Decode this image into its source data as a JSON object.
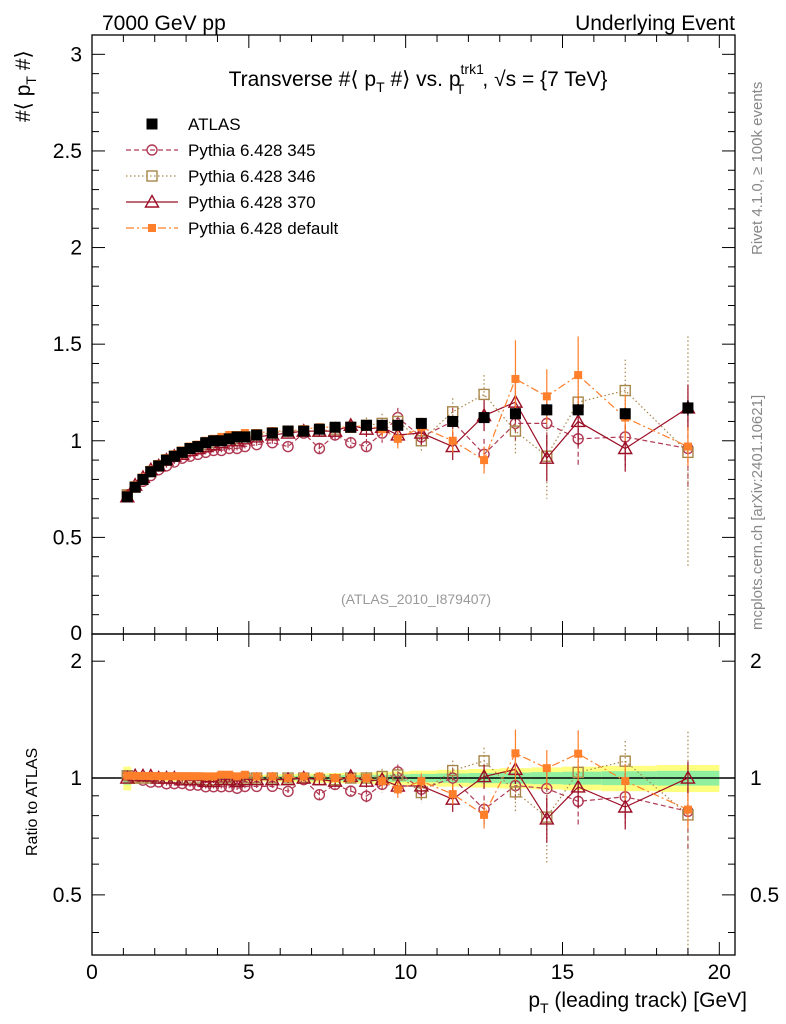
{
  "header": {
    "left": "7000 GeV pp",
    "right": "Underlying Event"
  },
  "side_labels": {
    "rivet": "Rivet 4.1.0, ≥ 100k events",
    "mcplots": "mcplots.cern.ch [arXiv:2401.10621]"
  },
  "colors": {
    "atlas": "#000000",
    "p345": "#b03a54",
    "p346": "#a8864a",
    "p370": "#9b0e24",
    "pdefault": "#ff7f2a",
    "band_inner": "#90f0a0",
    "band_outer": "#ffff80"
  },
  "chart_data": {
    "type": "scatter",
    "title": "Transverse #⟨ p_T #⟩ vs. p_T^trk1, √s = {7 TeV}",
    "title_parts": {
      "prefix": "Transverse #⟨ p",
      "sub1": "T",
      "mid": " #⟩ vs. p",
      "sup": "trk1",
      "sub2": "T",
      "suffix": ", √s = {7 TeV}"
    },
    "watermark": "(ATLAS_2010_I879407)",
    "xlabel": "p_T (leading track) [GeV]",
    "xlabel_parts": {
      "p": "p",
      "sub": "T",
      "rest": " (leading track) [GeV]"
    },
    "ylabel": "#⟨ p_T #⟩",
    "ylabel_parts": {
      "a": "#⟨ p",
      "sub": "T",
      "b": " #⟩"
    },
    "ratio_ylabel": "Ratio to ATLAS",
    "xlim": [
      0,
      20.5
    ],
    "ylim_main": [
      0,
      3.1
    ],
    "ylim_ratio": [
      0.35,
      2.35
    ],
    "x_ticks": [
      0,
      5,
      10,
      15,
      20
    ],
    "x_tick_labels": [
      "0",
      "5",
      "10",
      "15",
      "20"
    ],
    "y_ticks_main": [
      0.5,
      1,
      1.5,
      2,
      2.5,
      3
    ],
    "y_tick_labels_main": [
      "0.5",
      "1",
      "1.5",
      "2",
      "2.5",
      "3"
    ],
    "y_zero_label": "0",
    "y_ticks_ratio": [
      0.5,
      1,
      2
    ],
    "y_tick_labels_ratio": [
      "0.5",
      "1",
      "2"
    ],
    "x": [
      1.125,
      1.375,
      1.625,
      1.875,
      2.125,
      2.375,
      2.625,
      2.875,
      3.125,
      3.375,
      3.625,
      3.875,
      4.125,
      4.375,
      4.625,
      4.875,
      5.25,
      5.75,
      6.25,
      6.75,
      7.25,
      7.75,
      8.25,
      8.75,
      9.25,
      9.75,
      10.5,
      11.5,
      12.5,
      13.5,
      14.5,
      15.5,
      17.0,
      19.0
    ],
    "band_halfwidth": [
      0.07,
      0.035,
      0.03,
      0.025,
      0.022,
      0.02,
      0.02,
      0.02,
      0.02,
      0.02,
      0.02,
      0.02,
      0.02,
      0.02,
      0.02,
      0.02,
      0.02,
      0.022,
      0.024,
      0.026,
      0.028,
      0.03,
      0.032,
      0.034,
      0.036,
      0.04,
      0.045,
      0.05,
      0.055,
      0.06,
      0.065,
      0.07,
      0.075,
      0.08
    ],
    "series": [
      {
        "name": "ATLAS",
        "key": "atlas",
        "marker": "square-filled",
        "style": "none",
        "values": [
          0.71,
          0.76,
          0.8,
          0.84,
          0.87,
          0.9,
          0.92,
          0.94,
          0.96,
          0.97,
          0.99,
          1.0,
          1.0,
          1.01,
          1.02,
          1.02,
          1.03,
          1.04,
          1.05,
          1.05,
          1.06,
          1.07,
          1.07,
          1.08,
          1.08,
          1.08,
          1.09,
          1.1,
          1.12,
          1.14,
          1.16,
          1.16,
          1.14,
          1.17
        ],
        "errors": [
          0.01,
          0.01,
          0.01,
          0.01,
          0.01,
          0.01,
          0.01,
          0.01,
          0.01,
          0.01,
          0.01,
          0.01,
          0.01,
          0.01,
          0.01,
          0.01,
          0.01,
          0.01,
          0.01,
          0.01,
          0.01,
          0.01,
          0.01,
          0.01,
          0.01,
          0.02,
          0.02,
          0.02,
          0.02,
          0.03,
          0.03,
          0.03,
          0.03,
          0.04
        ]
      },
      {
        "name": "Pythia 6.428 345",
        "key": "p345",
        "marker": "circle-open",
        "style": "dashed",
        "values": [
          0.72,
          0.76,
          0.79,
          0.82,
          0.85,
          0.87,
          0.89,
          0.91,
          0.92,
          0.93,
          0.94,
          0.95,
          0.95,
          0.96,
          0.96,
          0.97,
          0.98,
          0.99,
          0.97,
          1.04,
          0.96,
          1.03,
          0.99,
          0.97,
          1.04,
          1.12,
          1.02,
          1.1,
          0.93,
          1.09,
          1.09,
          1.01,
          1.02,
          0.96
        ],
        "errors": [
          0.01,
          0.01,
          0.01,
          0.01,
          0.01,
          0.01,
          0.01,
          0.01,
          0.01,
          0.01,
          0.01,
          0.01,
          0.01,
          0.01,
          0.01,
          0.01,
          0.02,
          0.02,
          0.02,
          0.02,
          0.03,
          0.03,
          0.03,
          0.04,
          0.05,
          0.05,
          0.06,
          0.07,
          0.08,
          0.1,
          0.12,
          0.14,
          0.15,
          0.2
        ]
      },
      {
        "name": "Pythia 6.428 346",
        "key": "p346",
        "marker": "square-open",
        "style": "dotted",
        "values": [
          0.72,
          0.76,
          0.8,
          0.84,
          0.87,
          0.9,
          0.92,
          0.94,
          0.96,
          0.97,
          0.98,
          0.99,
          1.0,
          1.01,
          1.01,
          1.02,
          1.03,
          1.04,
          1.05,
          1.05,
          1.05,
          1.06,
          1.07,
          1.08,
          1.09,
          1.1,
          1.0,
          1.15,
          1.24,
          1.05,
          0.92,
          1.2,
          1.26,
          0.94
        ],
        "errors": [
          0.01,
          0.01,
          0.01,
          0.01,
          0.01,
          0.01,
          0.01,
          0.01,
          0.01,
          0.01,
          0.01,
          0.01,
          0.01,
          0.01,
          0.01,
          0.01,
          0.02,
          0.02,
          0.02,
          0.02,
          0.03,
          0.03,
          0.03,
          0.04,
          0.05,
          0.05,
          0.06,
          0.07,
          0.1,
          0.12,
          0.22,
          0.15,
          0.16,
          0.6
        ]
      },
      {
        "name": "Pythia 6.428 370",
        "key": "p370",
        "marker": "triangle-open",
        "style": "solid",
        "values": [
          0.71,
          0.77,
          0.81,
          0.85,
          0.87,
          0.9,
          0.92,
          0.93,
          0.95,
          0.96,
          0.97,
          0.98,
          0.99,
          1.0,
          1.0,
          1.01,
          1.02,
          1.03,
          1.04,
          1.05,
          1.05,
          1.05,
          1.08,
          1.06,
          1.07,
          1.03,
          1.04,
          0.97,
          1.13,
          1.2,
          0.91,
          1.1,
          0.96,
          1.17
        ],
        "errors": [
          0.01,
          0.01,
          0.01,
          0.01,
          0.01,
          0.01,
          0.01,
          0.01,
          0.01,
          0.01,
          0.01,
          0.01,
          0.01,
          0.01,
          0.01,
          0.01,
          0.02,
          0.02,
          0.02,
          0.02,
          0.03,
          0.03,
          0.03,
          0.04,
          0.04,
          0.05,
          0.06,
          0.07,
          0.08,
          0.1,
          0.12,
          0.13,
          0.12,
          0.12
        ]
      },
      {
        "name": "Pythia 6.428 default",
        "key": "pdefault",
        "marker": "square-small-filled",
        "style": "dashdot",
        "values": [
          0.72,
          0.77,
          0.81,
          0.85,
          0.88,
          0.91,
          0.93,
          0.95,
          0.97,
          0.98,
          1.0,
          1.01,
          1.02,
          1.03,
          1.03,
          1.04,
          1.04,
          1.05,
          1.05,
          1.06,
          1.07,
          1.07,
          1.07,
          1.08,
          1.06,
          1.01,
          1.07,
          1.0,
          0.9,
          1.32,
          1.23,
          1.34,
          1.12,
          0.97
        ],
        "errors": [
          0.01,
          0.01,
          0.01,
          0.01,
          0.01,
          0.01,
          0.01,
          0.01,
          0.01,
          0.01,
          0.01,
          0.01,
          0.01,
          0.01,
          0.01,
          0.01,
          0.01,
          0.02,
          0.02,
          0.02,
          0.02,
          0.03,
          0.03,
          0.03,
          0.04,
          0.05,
          0.05,
          0.06,
          0.07,
          0.2,
          0.14,
          0.2,
          0.12,
          0.1
        ]
      }
    ]
  }
}
